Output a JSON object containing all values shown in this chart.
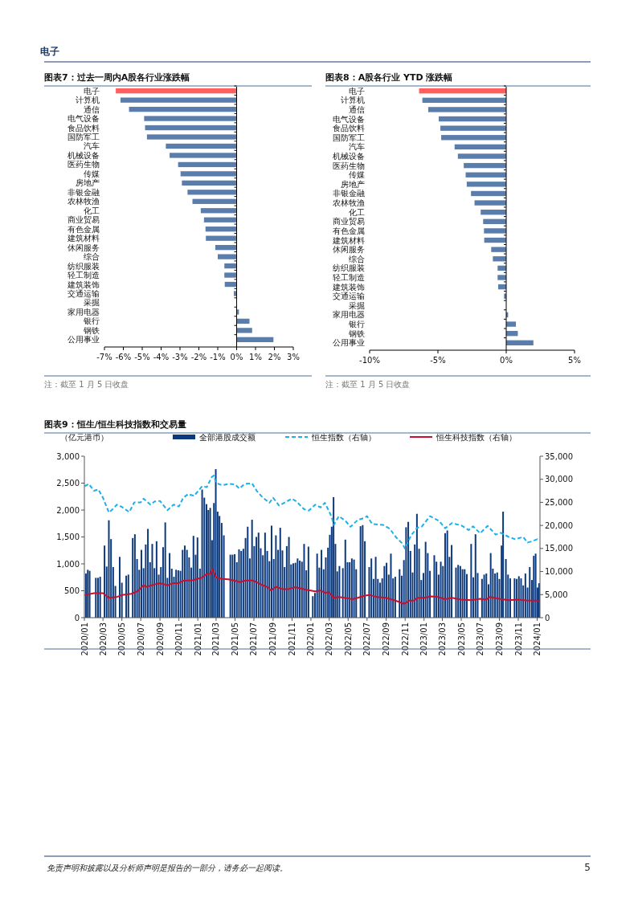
{
  "chart_data": [
    {
      "type": "bar",
      "orientation": "horizontal",
      "title": "图表7：过去一周内A股各行业涨跌幅",
      "categories": [
        "电子",
        "计算机",
        "通信",
        "电气设备",
        "食品饮料",
        "国防军工",
        "汽车",
        "机械设备",
        "医药生物",
        "传媒",
        "房地产",
        "非银金融",
        "农林牧渔",
        "化工",
        "商业贸易",
        "有色金属",
        "建筑材料",
        "休闲服务",
        "综合",
        "纺织服装",
        "轻工制造",
        "建筑装饰",
        "交通运输",
        "采掘",
        "家用电器",
        "银行",
        "钢铁",
        "公用事业"
      ],
      "values": [
        -6.4,
        -6.15,
        -5.7,
        -4.9,
        -4.85,
        -4.75,
        -3.75,
        -3.55,
        -3.1,
        -2.97,
        -2.9,
        -2.6,
        -2.34,
        -1.9,
        -1.73,
        -1.65,
        -1.63,
        -1.13,
        -1.0,
        -0.65,
        -0.65,
        -0.63,
        -0.15,
        0,
        0.12,
        0.68,
        0.82,
        1.95
      ],
      "colors": [
        "#ff5f5f",
        "#5b7dab",
        "#5b7dab",
        "#5b7dab",
        "#5b7dab",
        "#5b7dab",
        "#5b7dab",
        "#5b7dab",
        "#5b7dab",
        "#5b7dab",
        "#5b7dab",
        "#5b7dab",
        "#5b7dab",
        "#5b7dab",
        "#5b7dab",
        "#5b7dab",
        "#5b7dab",
        "#5b7dab",
        "#5b7dab",
        "#5b7dab",
        "#5b7dab",
        "#5b7dab",
        "#5b7dab",
        "#5b7dab",
        "#5b7dab",
        "#5b7dab",
        "#5b7dab",
        "#5b7dab"
      ],
      "xlim": [
        -7,
        3
      ],
      "xticks": [
        {
          "value": -7,
          "label": "-7%"
        },
        {
          "value": -6,
          "label": "-6%"
        },
        {
          "value": -5,
          "label": "-5%"
        },
        {
          "value": -4,
          "label": "-4%"
        },
        {
          "value": -3,
          "label": "-3%"
        },
        {
          "value": -2,
          "label": "-2%"
        },
        {
          "value": -1,
          "label": "-1%"
        },
        {
          "value": 0,
          "label": "0%"
        },
        {
          "value": 1,
          "label": "1%"
        },
        {
          "value": 2,
          "label": "2%"
        },
        {
          "value": 3,
          "label": "3%"
        }
      ],
      "annotations": [
        "电子",
        "注：截至 1 月 5 日收盘"
      ]
    },
    {
      "type": "bar",
      "orientation": "horizontal",
      "title": "图表8：A股各行业 YTD 涨跌幅",
      "categories": [
        "电子",
        "计算机",
        "通信",
        "电气设备",
        "食品饮料",
        "国防军工",
        "汽车",
        "机械设备",
        "医药生物",
        "传媒",
        "房地产",
        "非银金融",
        "农林牧渔",
        "化工",
        "商业贸易",
        "有色金属",
        "建筑材料",
        "休闲服务",
        "综合",
        "纺织服装",
        "轻工制造",
        "建筑装饰",
        "交通运输",
        "采掘",
        "家用电器",
        "银行",
        "钢铁",
        "公用事业"
      ],
      "values": [
        -6.38,
        -6.14,
        -5.71,
        -4.94,
        -4.82,
        -4.76,
        -3.78,
        -3.54,
        -3.11,
        -2.97,
        -2.89,
        -2.58,
        -2.32,
        -1.87,
        -1.69,
        -1.63,
        -1.61,
        -1.1,
        -0.98,
        -0.63,
        -0.63,
        -0.59,
        -0.16,
        0,
        0.14,
        0.71,
        0.85,
        1.99
      ],
      "colors": [
        "#ff5f5f",
        "#5b7dab",
        "#5b7dab",
        "#5b7dab",
        "#5b7dab",
        "#5b7dab",
        "#5b7dab",
        "#5b7dab",
        "#5b7dab",
        "#5b7dab",
        "#5b7dab",
        "#5b7dab",
        "#5b7dab",
        "#5b7dab",
        "#5b7dab",
        "#5b7dab",
        "#5b7dab",
        "#5b7dab",
        "#5b7dab",
        "#5b7dab",
        "#5b7dab",
        "#5b7dab",
        "#5b7dab",
        "#5b7dab",
        "#5b7dab",
        "#5b7dab",
        "#5b7dab",
        "#5b7dab"
      ],
      "xlim": [
        -10,
        5
      ],
      "xticks": [
        {
          "value": -10,
          "label": "-10%"
        },
        {
          "value": -5,
          "label": "-5%"
        },
        {
          "value": 0,
          "label": "0%"
        },
        {
          "value": 5,
          "label": "5%"
        }
      ],
      "annotations": [
        "注：截至 1 月 5 日收盘"
      ]
    },
    {
      "type": "bar",
      "title": "图表9：恒生/恒生科技指数和交易量",
      "ylabel": "（亿元港币）",
      "legend": "top",
      "xlim": [
        "2020-01-01",
        "2024-01-10"
      ],
      "xticks": [
        {
          "value": "2020-01",
          "label": "2020/01"
        },
        {
          "value": "2020-03",
          "label": "2020/03"
        },
        {
          "value": "2020-05",
          "label": "2020/05"
        },
        {
          "value": "2020-07",
          "label": "2020/07"
        },
        {
          "value": "2020-09",
          "label": "2020/09"
        },
        {
          "value": "2020-11",
          "label": "2020/11"
        },
        {
          "value": "2021-01",
          "label": "2021/01"
        },
        {
          "value": "2021-03",
          "label": "2021/03"
        },
        {
          "value": "2021-05",
          "label": "2021/05"
        },
        {
          "value": "2021-07",
          "label": "2021/07"
        },
        {
          "value": "2021-09",
          "label": "2021/09"
        },
        {
          "value": "2021-11",
          "label": "2021/11"
        },
        {
          "value": "2022-01",
          "label": "2022/01"
        },
        {
          "value": "2022-03",
          "label": "2022/03"
        },
        {
          "value": "2022-05",
          "label": "2022/05"
        },
        {
          "value": "2022-07",
          "label": "2022/07"
        },
        {
          "value": "2022-09",
          "label": "2022/09"
        },
        {
          "value": "2022-11",
          "label": "2022/11"
        },
        {
          "value": "2023-01",
          "label": "2023/01"
        },
        {
          "value": "2023-03",
          "label": "2023/03"
        },
        {
          "value": "2023-05",
          "label": "2023/05"
        },
        {
          "value": "2023-07",
          "label": "2023/07"
        },
        {
          "value": "2023-09",
          "label": "2023/09"
        },
        {
          "value": "2023-11",
          "label": "2023/11"
        },
        {
          "value": "2024-01",
          "label": "2024/01"
        }
      ],
      "ylim": [
        0,
        3000
      ],
      "yticks": [
        0,
        {
          "value": 500,
          "label": "500"
        },
        {
          "value": 1000,
          "label": "1,000"
        },
        {
          "value": 1500,
          "label": "1,500"
        },
        {
          "value": 2000,
          "label": "2,000"
        },
        {
          "value": 2500,
          "label": "2,500"
        },
        {
          "value": 3000,
          "label": "3,000"
        }
      ],
      "y2lim": [
        0,
        35000
      ],
      "y2ticks": [
        0,
        {
          "value": 5000,
          "label": "5,000"
        },
        {
          "value": 10000,
          "label": "10,000"
        },
        {
          "value": 15000,
          "label": "15,000"
        },
        {
          "value": 20000,
          "label": "20,000"
        },
        {
          "value": 25000,
          "label": "25,000"
        },
        {
          "value": 30000,
          "label": "30,000"
        },
        {
          "value": 35000,
          "label": "35,000"
        }
      ],
      "series": [
        {
          "name": "全部港股成交额",
          "type": "bar",
          "color": "#0c3a7c",
          "x": [
            "2020-01-06",
            "2020-01-12",
            "2020-01-18",
            "2020-02-07",
            "2020-02-14",
            "2020-02-21",
            "2020-03-06",
            "2020-03-13",
            "2020-03-20",
            "2020-03-27",
            "2020-04-03",
            "2020-04-10",
            "2020-04-24",
            "2020-05-01",
            "2020-05-15",
            "2020-05-22",
            "2020-06-05",
            "2020-06-12",
            "2020-06-19",
            "2020-06-26",
            "2020-07-03",
            "2020-07-10",
            "2020-07-17",
            "2020-07-24",
            "2020-07-31",
            "2020-08-07",
            "2020-08-14",
            "2020-08-21",
            "2020-08-28",
            "2020-09-04",
            "2020-09-11",
            "2020-09-18",
            "2020-09-25",
            "2020-10-02",
            "2020-10-09",
            "2020-10-16",
            "2020-10-23",
            "2020-10-30",
            "2020-11-06",
            "2020-11-13",
            "2020-11-20",
            "2020-11-27",
            "2020-12-04",
            "2020-12-11",
            "2020-12-18",
            "2020-12-25",
            "2020-12-31",
            "2021-01-08",
            "2021-01-15",
            "2021-01-22",
            "2021-01-29",
            "2021-02-04",
            "2021-02-10",
            "2021-02-16",
            "2021-02-22",
            "2021-02-28",
            "2021-03-06",
            "2021-03-12",
            "2021-03-19",
            "2021-03-26",
            "2021-04-16",
            "2021-04-23",
            "2021-04-30",
            "2021-05-07",
            "2021-05-14",
            "2021-05-21",
            "2021-05-28",
            "2021-06-04",
            "2021-06-11",
            "2021-06-18",
            "2021-06-25",
            "2021-07-02",
            "2021-07-09",
            "2021-07-16",
            "2021-07-23",
            "2021-07-30",
            "2021-08-06",
            "2021-08-13",
            "2021-08-20",
            "2021-08-27",
            "2021-09-03",
            "2021-09-10",
            "2021-09-17",
            "2021-09-24",
            "2021-10-01",
            "2021-10-08",
            "2021-10-15",
            "2021-10-22",
            "2021-10-29",
            "2021-11-05",
            "2021-11-12",
            "2021-11-19",
            "2021-11-26",
            "2021-12-03",
            "2021-12-10",
            "2021-12-17",
            "2021-12-24",
            "2022-01-07",
            "2022-01-14",
            "2022-01-21",
            "2022-01-28",
            "2022-02-04",
            "2022-02-11",
            "2022-02-18",
            "2022-02-25",
            "2022-03-03",
            "2022-03-09",
            "2022-03-15",
            "2022-03-21",
            "2022-03-27",
            "2022-04-03",
            "2022-04-14",
            "2022-04-22",
            "2022-04-29",
            "2022-05-06",
            "2022-05-13",
            "2022-05-20",
            "2022-05-27",
            "2022-06-10",
            "2022-06-17",
            "2022-06-24",
            "2022-07-08",
            "2022-07-15",
            "2022-07-22",
            "2022-07-29",
            "2022-08-05",
            "2022-08-12",
            "2022-08-19",
            "2022-08-26",
            "2022-09-02",
            "2022-09-09",
            "2022-09-16",
            "2022-09-23",
            "2022-09-30",
            "2022-10-14",
            "2022-10-21",
            "2022-10-28",
            "2022-11-04",
            "2022-11-11",
            "2022-11-18",
            "2022-11-25",
            "2022-12-02",
            "2022-12-09",
            "2022-12-16",
            "2022-12-23",
            "2022-12-30",
            "2023-01-06",
            "2023-01-13",
            "2023-01-20",
            "2023-02-03",
            "2023-02-10",
            "2023-02-17",
            "2023-02-24",
            "2023-03-03",
            "2023-03-10",
            "2023-03-17",
            "2023-03-24",
            "2023-03-31",
            "2023-04-14",
            "2023-04-21",
            "2023-04-28",
            "2023-05-05",
            "2023-05-12",
            "2023-05-19",
            "2023-06-02",
            "2023-06-09",
            "2023-06-16",
            "2023-06-23",
            "2023-07-07",
            "2023-07-14",
            "2023-07-21",
            "2023-07-28",
            "2023-08-04",
            "2023-08-11",
            "2023-08-18",
            "2023-08-25",
            "2023-09-01",
            "2023-09-08",
            "2023-09-13",
            "2023-09-22",
            "2023-09-29",
            "2023-10-06",
            "2023-10-20",
            "2023-10-27",
            "2023-11-03",
            "2023-11-10",
            "2023-11-17",
            "2023-11-24",
            "2023-12-01",
            "2023-12-08",
            "2023-12-15",
            "2023-12-21",
            "2023-12-27",
            "2024-01-02",
            "2024-01-07"
          ],
          "values": [
            820,
            890,
            870,
            740,
            740,
            760,
            1340,
            950,
            1810,
            1460,
            940,
            590,
            1130,
            650,
            780,
            800,
            1480,
            1550,
            1090,
            890,
            1260,
            920,
            1360,
            1650,
            1030,
            1370,
            920,
            1420,
            800,
            940,
            1310,
            1770,
            740,
            1200,
            910,
            760,
            890,
            880,
            870,
            1260,
            1340,
            1260,
            1120,
            930,
            1520,
            1170,
            1490,
            910,
            2380,
            2230,
            2110,
            2000,
            2040,
            1440,
            2130,
            2760,
            1970,
            1890,
            1760,
            1530,
            1170,
            1170,
            1180,
            1030,
            1270,
            1240,
            1280,
            1480,
            1690,
            1100,
            1820,
            1330,
            1500,
            1580,
            1290,
            1160,
            1580,
            1240,
            1050,
            1710,
            1090,
            1530,
            1260,
            1670,
            1250,
            940,
            1330,
            1500,
            990,
            1010,
            1020,
            1100,
            1060,
            1040,
            1370,
            880,
            1320,
            400,
            460,
            1190,
            930,
            1260,
            900,
            1120,
            1300,
            1540,
            1690,
            2240,
            1370,
            860,
            960,
            920,
            1450,
            1030,
            1030,
            1100,
            1080,
            900,
            1700,
            1720,
            1420,
            940,
            1100,
            720,
            1130,
            720,
            650,
            730,
            960,
            1020,
            800,
            1190,
            730,
            760,
            900,
            780,
            1070,
            1680,
            1780,
            1240,
            840,
            1360,
            1930,
            1280,
            700,
            830,
            1410,
            1200,
            870,
            1160,
            1040,
            800,
            1040,
            960,
            1570,
            1620,
            1130,
            1350,
            930,
            980,
            960,
            900,
            900,
            810,
            1370,
            750,
            1550,
            830,
            720,
            800,
            820,
            620,
            1200,
            910,
            820,
            840,
            720,
            1340,
            1970,
            1090,
            800,
            730,
            730,
            720,
            770,
            730,
            600,
            820,
            560,
            940,
            700,
            1150,
            1190,
            560,
            640
          ]
        },
        {
          "name": "恒生指数（右轴）",
          "type": "line",
          "axis": "y2",
          "color": "#1cb0e8",
          "line_style": "dashed",
          "x": [
            "2020-01-02",
            "2020-01-15",
            "2020-02-01",
            "2020-02-15",
            "2020-03-01",
            "2020-03-20",
            "2020-04-01",
            "2020-04-15",
            "2020-05-01",
            "2020-05-25",
            "2020-06-10",
            "2020-07-01",
            "2020-07-10",
            "2020-08-01",
            "2020-08-15",
            "2020-09-01",
            "2020-09-25",
            "2020-10-15",
            "2020-11-01",
            "2020-11-15",
            "2020-12-01",
            "2020-12-20",
            "2021-01-15",
            "2021-01-30",
            "2021-02-15",
            "2021-02-22",
            "2021-03-01",
            "2021-03-20",
            "2021-04-10",
            "2021-05-01",
            "2021-05-15",
            "2021-06-01",
            "2021-06-25",
            "2021-07-10",
            "2021-07-30",
            "2021-08-20",
            "2021-09-01",
            "2021-09-20",
            "2021-10-15",
            "2021-11-01",
            "2021-11-15",
            "2021-12-10",
            "2021-12-25",
            "2022-01-15",
            "2022-02-01",
            "2022-02-15",
            "2022-03-08",
            "2022-03-16",
            "2022-04-01",
            "2022-04-22",
            "2022-05-09",
            "2022-06-01",
            "2022-06-22",
            "2022-07-01",
            "2022-07-18",
            "2022-08-22",
            "2022-09-12",
            "2022-10-03",
            "2022-10-24",
            "2022-10-31",
            "2022-11-20",
            "2022-12-10",
            "2022-12-24",
            "2023-01-20",
            "2023-02-18",
            "2023-03-10",
            "2023-04-01",
            "2023-05-01",
            "2023-05-25",
            "2023-06-08",
            "2023-07-01",
            "2023-07-25",
            "2023-08-20",
            "2023-09-06",
            "2023-10-01",
            "2023-10-22",
            "2023-11-17",
            "2023-12-01",
            "2023-12-18",
            "2024-01-01",
            "2024-01-06"
          ],
          "values": [
            28500,
            29000,
            27500,
            27800,
            26000,
            22800,
            23500,
            24500,
            24000,
            22900,
            25000,
            25000,
            25800,
            24500,
            25200,
            25300,
            23300,
            24500,
            24100,
            26000,
            26800,
            26400,
            28500,
            28300,
            30500,
            30800,
            29200,
            28700,
            29000,
            28900,
            28000,
            29000,
            29100,
            27500,
            26000,
            24900,
            26000,
            24300,
            25200,
            25800,
            25200,
            23500,
            23200,
            24500,
            23900,
            24900,
            22000,
            20100,
            22000,
            21000,
            19700,
            21200,
            21600,
            22000,
            20300,
            20100,
            19300,
            17400,
            16000,
            15000,
            17800,
            19500,
            19700,
            22000,
            21000,
            19400,
            20500,
            20000,
            19000,
            19800,
            18300,
            19900,
            18000,
            18400,
            17500,
            17000,
            17500,
            16300,
            16600,
            17000,
            16600
          ]
        },
        {
          "name": "恒生科技指数（右轴）",
          "type": "line",
          "axis": "y2",
          "color": "#c8102e",
          "line_style": "solid",
          "x": [
            "2020-01-02",
            "2020-02-01",
            "2020-03-01",
            "2020-03-20",
            "2020-04-15",
            "2020-05-01",
            "2020-06-01",
            "2020-06-20",
            "2020-07-10",
            "2020-07-20",
            "2020-08-15",
            "2020-09-01",
            "2020-09-25",
            "2020-10-15",
            "2020-11-01",
            "2020-11-15",
            "2020-12-15",
            "2021-01-15",
            "2021-02-01",
            "2021-02-10",
            "2021-02-18",
            "2021-03-01",
            "2021-03-20",
            "2021-04-10",
            "2021-05-01",
            "2021-05-15",
            "2021-06-01",
            "2021-06-25",
            "2021-07-10",
            "2021-07-30",
            "2021-08-15",
            "2021-08-25",
            "2021-09-10",
            "2021-10-01",
            "2021-10-20",
            "2021-11-10",
            "2021-12-01",
            "2021-12-20",
            "2022-01-15",
            "2022-02-01",
            "2022-02-15",
            "2022-03-01",
            "2022-03-15",
            "2022-04-01",
            "2022-05-01",
            "2022-05-15",
            "2022-06-01",
            "2022-06-25",
            "2022-07-10",
            "2022-08-01",
            "2022-09-01",
            "2022-10-01",
            "2022-10-28",
            "2022-11-15",
            "2022-12-01",
            "2022-12-10",
            "2023-01-01",
            "2023-01-25",
            "2023-02-15",
            "2023-03-10",
            "2023-04-01",
            "2023-05-01",
            "2023-06-01",
            "2023-07-01",
            "2023-07-20",
            "2023-08-01",
            "2023-09-01",
            "2023-10-01",
            "2023-11-01",
            "2023-12-01",
            "2024-01-01",
            "2024-01-06"
          ],
          "values": [
            4900,
            5300,
            5300,
            4300,
            4500,
            4900,
            5200,
            5700,
            7000,
            6700,
            7200,
            7500,
            7000,
            7500,
            7500,
            8000,
            8100,
            8700,
            9600,
            9500,
            10500,
            8700,
            8400,
            8300,
            8000,
            7700,
            8000,
            8100,
            7700,
            7000,
            6600,
            5900,
            6700,
            6200,
            6200,
            6600,
            6300,
            6000,
            5700,
            5900,
            5400,
            5500,
            4300,
            4500,
            4200,
            4000,
            4300,
            4800,
            4900,
            4500,
            4300,
            3700,
            3000,
            3700,
            3700,
            4300,
            4300,
            4600,
            4500,
            4000,
            4300,
            3900,
            3800,
            4100,
            3900,
            4500,
            4100,
            3800,
            3900,
            3700,
            3700,
            3500
          ]
        }
      ],
      "annotations": [
        "免责声明和披露以及分析师声明是报告的一部分，请务必一起阅读。",
        "5"
      ]
    }
  ]
}
